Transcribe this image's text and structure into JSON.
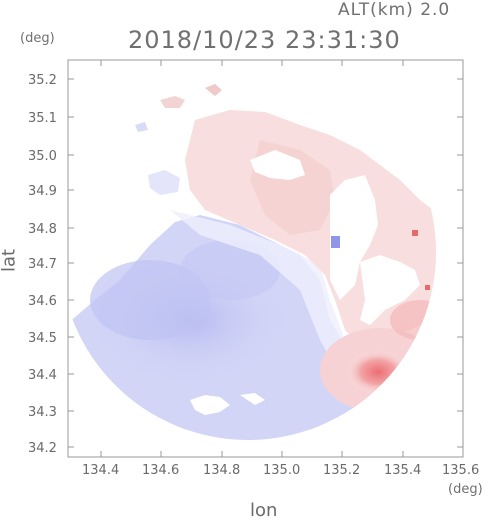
{
  "header": {
    "altitude_label": "ALT(km) 2.0",
    "timestamp": "2018/10/23 23:31:30"
  },
  "axes": {
    "y_unit": "(deg)",
    "x_unit": "(deg)",
    "y_label": "lat",
    "x_label": "lon",
    "y_ticks": [
      "35.2",
      "35.1",
      "35.0",
      "34.9",
      "34.8",
      "34.7",
      "34.6",
      "34.5",
      "34.4",
      "34.3",
      "34.2"
    ],
    "x_ticks": [
      "134.4",
      "134.6",
      "134.8",
      "135.0",
      "135.2",
      "135.4",
      "135.6"
    ],
    "x_range": [
      134.3,
      135.6
    ],
    "y_range": [
      34.17,
      35.27
    ]
  },
  "colors": {
    "approaching": "#c9ccf5",
    "approaching_strong": "#a3a8ee",
    "receding": "#f6d3d3",
    "receding_strong": "#ee7a7a",
    "frame": "#9a9a9a"
  }
}
